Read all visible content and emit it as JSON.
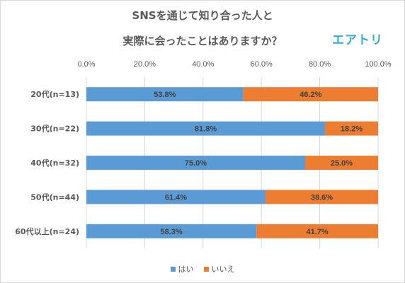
{
  "chart_data": {
    "type": "bar",
    "orientation": "horizontal",
    "stacked": "percent",
    "title": [
      "SNSを通じて知り合った人と",
      "実際に会ったことはありますか？"
    ],
    "categories": [
      "20代(n=13)",
      "30代(n=22)",
      "40代(n=32)",
      "50代(n=44)",
      "60代以上(n=24)"
    ],
    "series": [
      {
        "name": "はい",
        "color": "#5b9bd5",
        "values": [
          53.8,
          81.8,
          75.0,
          61.4,
          58.3
        ],
        "labels": [
          "53.8%",
          "81.8%",
          "75.0%",
          "61.4%",
          "58.3%"
        ]
      },
      {
        "name": "いいえ",
        "color": "#ed7d31",
        "values": [
          46.2,
          18.2,
          25.0,
          38.6,
          41.7
        ],
        "labels": [
          "46.2%",
          "18.2%",
          "25.0%",
          "38.6%",
          "41.7%"
        ]
      }
    ],
    "xlim": [
      0,
      100
    ],
    "xticks": [
      "0.0%",
      "20.0%",
      "40.0%",
      "60.0%",
      "80.0%",
      "100.0%"
    ],
    "xaxis_position": "top",
    "grid": true,
    "legend_position": "bottom"
  },
  "logo": {
    "text": "エアトリ",
    "color": "#2fb0c8"
  }
}
